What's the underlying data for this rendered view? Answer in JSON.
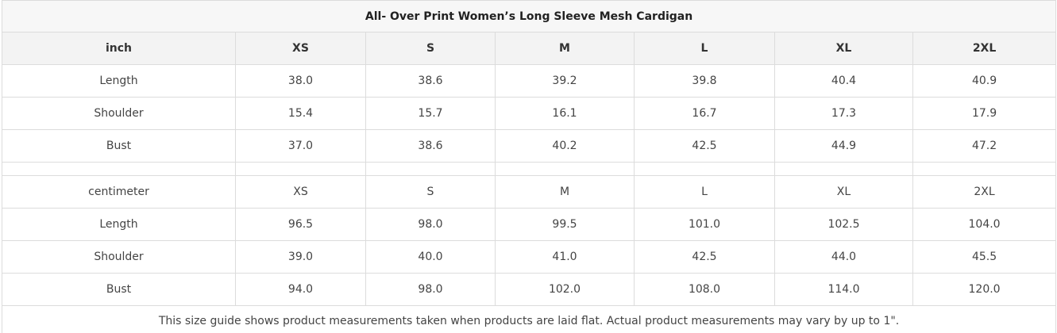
{
  "title": "All- Over Print Women’s Long Sleeve Mesh Cardigan",
  "inch_table": {
    "header": [
      "inch",
      "XS",
      "S",
      "M",
      "L",
      "XL",
      "2XL"
    ],
    "rows": [
      [
        "Length",
        "38.0",
        "38.6",
        "39.2",
        "39.8",
        "40.4",
        "40.9"
      ],
      [
        "Shoulder",
        "15.4",
        "15.7",
        "16.1",
        "16.7",
        "17.3",
        "17.9"
      ],
      [
        "Bust",
        "37.0",
        "38.6",
        "40.2",
        "42.5",
        "44.9",
        "47.2"
      ]
    ]
  },
  "cm_table": {
    "header": [
      "centimeter",
      "XS",
      "S",
      "M",
      "L",
      "XL",
      "2XL"
    ],
    "rows": [
      [
        "Length",
        "96.5",
        "98.0",
        "99.5",
        "101.0",
        "102.5",
        "104.0"
      ],
      [
        "Shoulder",
        "39.0",
        "40.0",
        "41.0",
        "42.5",
        "44.0",
        "45.5"
      ],
      [
        "Bust",
        "94.0",
        "98.0",
        "102.0",
        "108.0",
        "114.0",
        "120.0"
      ]
    ]
  },
  "footer_note": "This size guide shows product measurements taken when products are laid flat. Actual product measurements may vary by up to 1\"."
}
